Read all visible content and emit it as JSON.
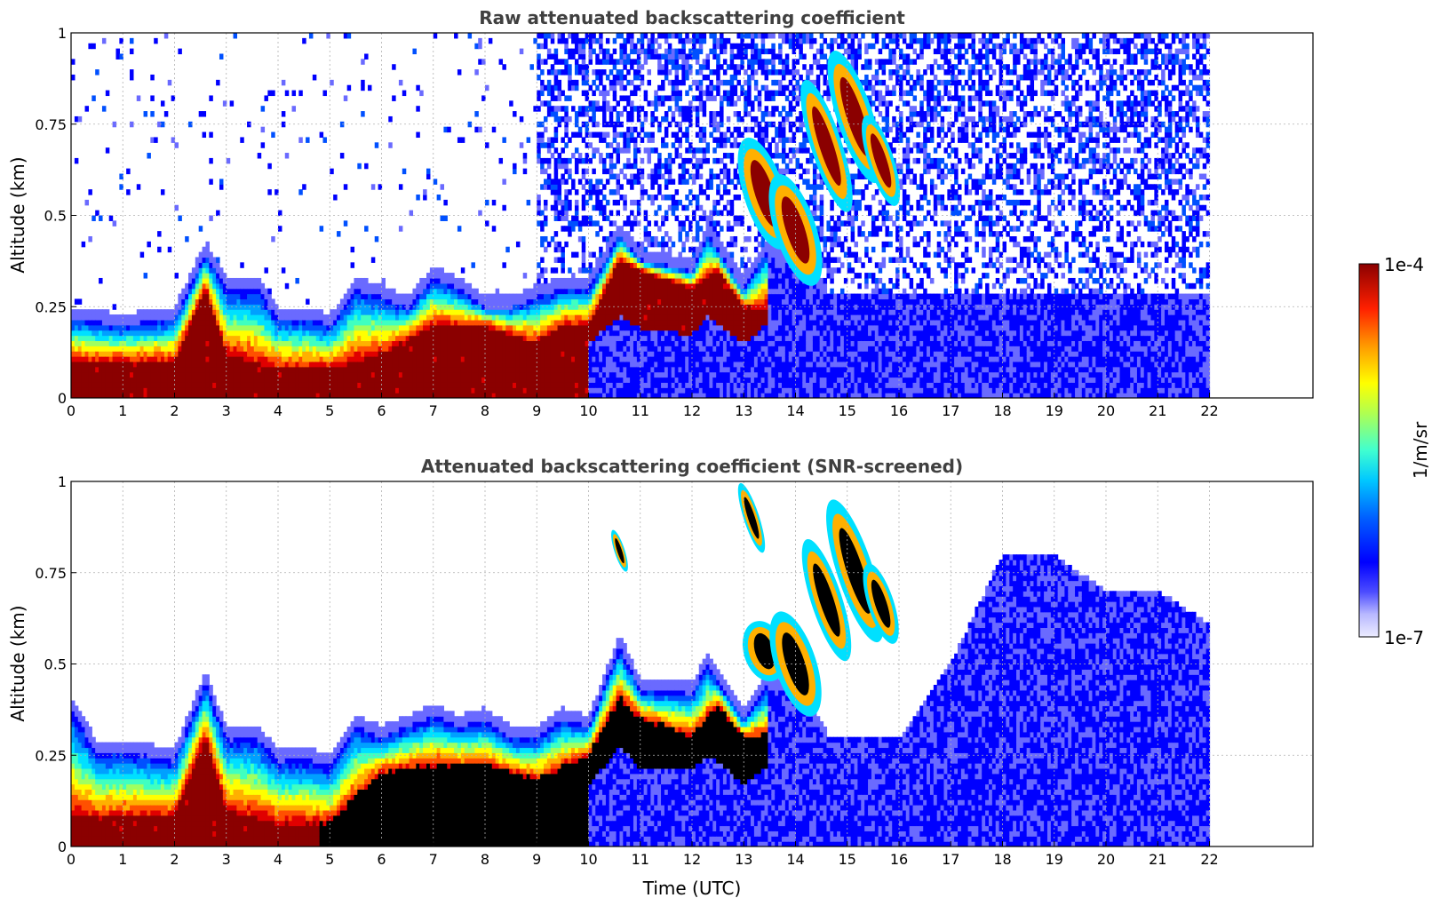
{
  "chart_data": [
    {
      "type": "heatmap",
      "title": "Raw attenuated backscattering coefficient",
      "xlabel": "",
      "ylabel": "Altitude (km)",
      "xlim": [
        0,
        24
      ],
      "ylim": [
        0,
        1
      ],
      "x_ticks": [
        "0",
        "1",
        "2",
        "3",
        "4",
        "5",
        "6",
        "7",
        "8",
        "9",
        "10",
        "11",
        "12",
        "13",
        "14",
        "15",
        "16",
        "17",
        "18",
        "19",
        "20",
        "21",
        "22"
      ],
      "y_ticks": [
        "0",
        "0.25",
        "0.5",
        "0.75",
        "1"
      ],
      "data_end_x": 22,
      "grid": true,
      "screened": false,
      "layer_top_km": [
        [
          0,
          0.22
        ],
        [
          1,
          0.2
        ],
        [
          2,
          0.22
        ],
        [
          2.6,
          0.4
        ],
        [
          3,
          0.3
        ],
        [
          3.6,
          0.3
        ],
        [
          4,
          0.22
        ],
        [
          4.6,
          0.22
        ],
        [
          5,
          0.2
        ],
        [
          5.5,
          0.3
        ],
        [
          6,
          0.28
        ],
        [
          6.5,
          0.25
        ],
        [
          7,
          0.33
        ],
        [
          7.5,
          0.3
        ],
        [
          8,
          0.25
        ],
        [
          8.5,
          0.25
        ],
        [
          9,
          0.28
        ],
        [
          9.5,
          0.3
        ],
        [
          10,
          0.3
        ],
        [
          10.6,
          0.45
        ],
        [
          11,
          0.38
        ],
        [
          12,
          0.35
        ],
        [
          12.3,
          0.45
        ],
        [
          13,
          0.3
        ],
        [
          13.5,
          0.42
        ],
        [
          14,
          0.35
        ],
        [
          14.6,
          0.28
        ]
      ],
      "strong_core_top_km": [
        [
          0,
          0.1
        ],
        [
          2,
          0.1
        ],
        [
          2.6,
          0.3
        ],
        [
          3,
          0.12
        ],
        [
          4,
          0.08
        ],
        [
          5,
          0.08
        ],
        [
          6,
          0.12
        ],
        [
          7,
          0.2
        ],
        [
          8,
          0.2
        ],
        [
          9,
          0.15
        ],
        [
          9.5,
          0.2
        ],
        [
          10,
          0.2
        ],
        [
          10.6,
          0.38
        ],
        [
          11,
          0.35
        ],
        [
          12,
          0.3
        ],
        [
          12.5,
          0.35
        ],
        [
          13,
          0.25
        ]
      ],
      "elevated_plumes": [
        {
          "t0": 13.0,
          "t1": 13.8,
          "bottom_km": 0.4,
          "top_km": 0.72
        },
        {
          "t0": 13.6,
          "t1": 14.4,
          "bottom_km": 0.3,
          "top_km": 0.62
        },
        {
          "t0": 14.3,
          "t1": 14.9,
          "bottom_km": 0.5,
          "top_km": 0.88
        },
        {
          "t0": 14.8,
          "t1": 15.5,
          "bottom_km": 0.58,
          "top_km": 0.96
        },
        {
          "t0": 15.4,
          "t1": 15.9,
          "bottom_km": 0.52,
          "top_km": 0.78
        }
      ]
    },
    {
      "type": "heatmap",
      "title": "Attenuated backscattering coefficient (SNR-screened)",
      "xlabel": "Time (UTC)",
      "ylabel": "Altitude (km)",
      "xlim": [
        0,
        24
      ],
      "ylim": [
        0,
        1
      ],
      "x_ticks": [
        "0",
        "1",
        "2",
        "3",
        "4",
        "5",
        "6",
        "7",
        "8",
        "9",
        "10",
        "11",
        "12",
        "13",
        "14",
        "15",
        "16",
        "17",
        "18",
        "19",
        "20",
        "21",
        "22"
      ],
      "y_ticks": [
        "0",
        "0.25",
        "0.5",
        "0.75",
        "1"
      ],
      "data_end_x": 22,
      "grid": true,
      "screened": true,
      "layer_top_km": [
        [
          0,
          0.38
        ],
        [
          0.5,
          0.26
        ],
        [
          1,
          0.26
        ],
        [
          2,
          0.24
        ],
        [
          2.6,
          0.45
        ],
        [
          3,
          0.3
        ],
        [
          3.6,
          0.3
        ],
        [
          4,
          0.24
        ],
        [
          4.6,
          0.24
        ],
        [
          5,
          0.22
        ],
        [
          5.5,
          0.33
        ],
        [
          6,
          0.3
        ],
        [
          6.5,
          0.33
        ],
        [
          7,
          0.36
        ],
        [
          7.5,
          0.33
        ],
        [
          8,
          0.35
        ],
        [
          8.5,
          0.3
        ],
        [
          9,
          0.3
        ],
        [
          9.5,
          0.35
        ],
        [
          10,
          0.33
        ],
        [
          10.6,
          0.55
        ],
        [
          11,
          0.43
        ],
        [
          12,
          0.42
        ],
        [
          12.3,
          0.5
        ],
        [
          13,
          0.35
        ],
        [
          13.5,
          0.45
        ],
        [
          14,
          0.4
        ],
        [
          14.6,
          0.3
        ],
        [
          16,
          0.3
        ],
        [
          17,
          0.5
        ],
        [
          18,
          0.8
        ],
        [
          19,
          0.8
        ],
        [
          20,
          0.7
        ],
        [
          21,
          0.7
        ],
        [
          22,
          0.61
        ]
      ],
      "strong_core_top_km": [
        [
          0,
          0.08
        ],
        [
          2,
          0.08
        ],
        [
          2.6,
          0.3
        ],
        [
          3,
          0.1
        ],
        [
          4,
          0.06
        ],
        [
          5,
          0.06
        ],
        [
          6,
          0.2
        ],
        [
          7,
          0.22
        ],
        [
          8,
          0.22
        ],
        [
          9,
          0.18
        ],
        [
          10,
          0.25
        ],
        [
          10.6,
          0.4
        ],
        [
          11,
          0.35
        ],
        [
          12,
          0.3
        ],
        [
          12.5,
          0.38
        ],
        [
          13,
          0.3
        ]
      ],
      "elevated_plumes": [
        {
          "t0": 10.5,
          "t1": 10.7,
          "bottom_km": 0.75,
          "top_km": 0.87
        },
        {
          "t0": 13.0,
          "t1": 13.3,
          "bottom_km": 0.8,
          "top_km": 1.0
        },
        {
          "t0": 13.0,
          "t1": 13.8,
          "bottom_km": 0.45,
          "top_km": 0.62
        },
        {
          "t0": 13.6,
          "t1": 14.4,
          "bottom_km": 0.35,
          "top_km": 0.65
        },
        {
          "t0": 14.3,
          "t1": 14.9,
          "bottom_km": 0.5,
          "top_km": 0.85
        },
        {
          "t0": 14.8,
          "t1": 15.5,
          "bottom_km": 0.55,
          "top_km": 0.96
        },
        {
          "t0": 15.4,
          "t1": 15.9,
          "bottom_km": 0.55,
          "top_km": 0.78
        }
      ]
    }
  ],
  "colorbar": {
    "label": "1/m/sr",
    "max_label": "1e-4",
    "min_label": "1e-7",
    "scale": "log",
    "colors": [
      "#ececff",
      "#b9b9ff",
      "#6a6aff",
      "#0000ff",
      "#0050ff",
      "#00a0ff",
      "#00e0ff",
      "#40ffc0",
      "#a0ff60",
      "#ffff00",
      "#ffb000",
      "#ff5000",
      "#e00000",
      "#8b0000"
    ]
  }
}
